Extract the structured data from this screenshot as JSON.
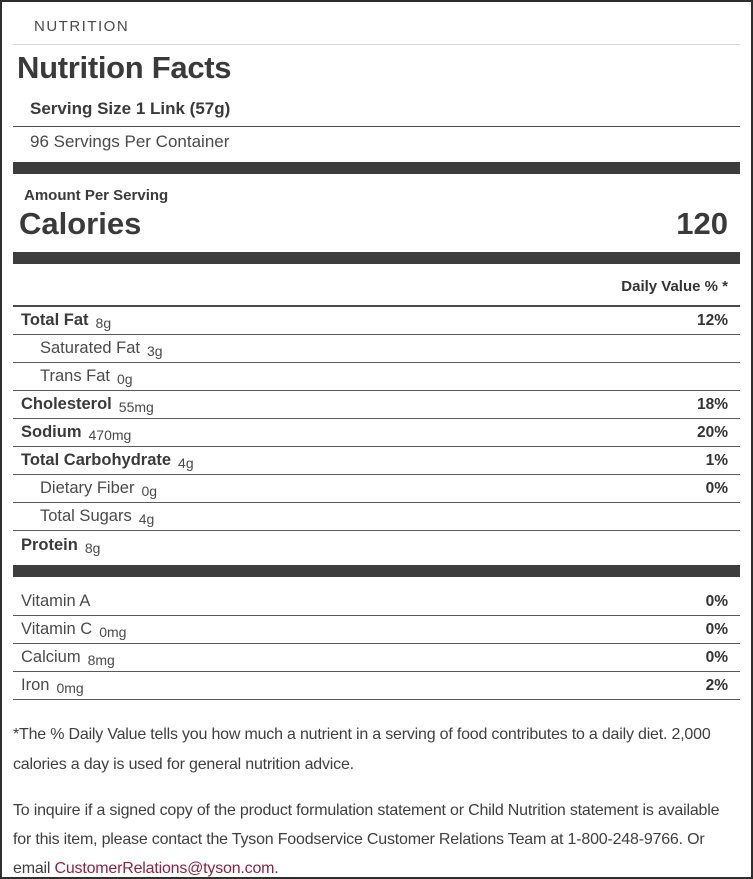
{
  "label": {
    "eyebrow": "NUTRITION",
    "title": "Nutrition Facts",
    "serving_size": "Serving Size 1 Link (57g)",
    "servings_per_container": "96 Servings Per Container",
    "amount_per_serving": "Amount Per Serving",
    "calories_label": "Calories",
    "calories_value": "120",
    "daily_value_header": "Daily Value % *",
    "nutrients": [
      {
        "name": "Total Fat",
        "amount": "8g",
        "dv": "12%"
      },
      {
        "name": "Saturated Fat",
        "amount": "3g",
        "dv": ""
      },
      {
        "name": "Trans Fat",
        "amount": "0g",
        "dv": ""
      },
      {
        "name": "Cholesterol",
        "amount": "55mg",
        "dv": "18%"
      },
      {
        "name": "Sodium",
        "amount": "470mg",
        "dv": "20%"
      },
      {
        "name": "Total Carbohydrate",
        "amount": "4g",
        "dv": "1%"
      },
      {
        "name": "Dietary Fiber",
        "amount": "0g",
        "dv": "0%"
      },
      {
        "name": "Total Sugars",
        "amount": "4g",
        "dv": ""
      },
      {
        "name": "Protein",
        "amount": "8g",
        "dv": ""
      }
    ],
    "vitamins": [
      {
        "name": "Vitamin A",
        "amount": "",
        "dv": "0%"
      },
      {
        "name": "Vitamin C",
        "amount": "0mg",
        "dv": "0%"
      },
      {
        "name": "Calcium",
        "amount": "8mg",
        "dv": "0%"
      },
      {
        "name": "Iron",
        "amount": "0mg",
        "dv": "2%"
      }
    ],
    "footnote": "*The % Daily Value tells you how much a nutrient in a serving of food contributes to a daily diet. 2,000 calories a day is used for general nutrition advice.",
    "contact": {
      "before_link": "To inquire if a signed copy of the product formulation statement or Child Nutrition statement is available for this item, please contact the Tyson Foodservice Customer Relations Team at 1-800-248-9766. Or email ",
      "link_text": "CustomerRelations@tyson.com",
      "after_link": "."
    },
    "colors": {
      "link": "#8f2041",
      "bar": "#3d3d3d",
      "text": "#3f3f3f"
    }
  }
}
